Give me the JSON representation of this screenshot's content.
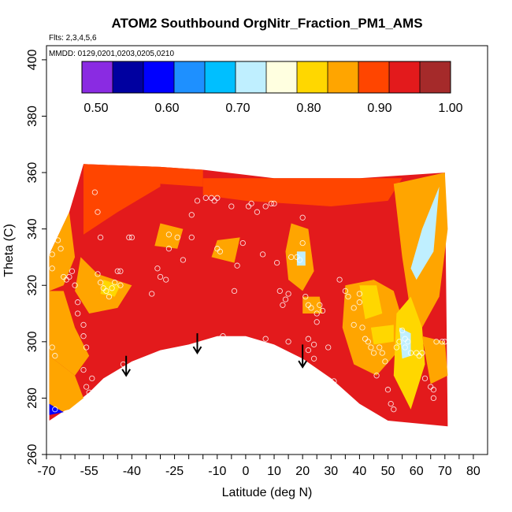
{
  "chart_data": {
    "type": "heatmap",
    "title": "ATOM2 Southbound OrgNitr_Fraction_PM1_AMS",
    "flights_note": "Flts: 2,3,4,5,6",
    "dates_note": "MMDD: 0129,0201,0203,0205,0210",
    "xlabel": "Latitude (deg N)",
    "ylabel": "Theta (C)",
    "xlim": [
      -70,
      85
    ],
    "ylim": [
      260,
      405
    ],
    "x_ticks": [
      -70,
      -65,
      -60,
      -55,
      -50,
      -45,
      -40,
      -35,
      -30,
      -25,
      -20,
      -15,
      -10,
      -5,
      0,
      5,
      10,
      15,
      20,
      25,
      30,
      35,
      40,
      45,
      50,
      55,
      60,
      65,
      70,
      75,
      80
    ],
    "x_tick_labels": [
      "-70",
      "-55",
      "-40",
      "-25",
      "-10",
      "0",
      "10",
      "20",
      "30",
      "40",
      "50",
      "60",
      "70",
      "80"
    ],
    "x_tick_label_values": [
      -70,
      -55,
      -40,
      -25,
      -10,
      0,
      10,
      20,
      30,
      40,
      50,
      60,
      70,
      80
    ],
    "y_ticks": [
      260,
      280,
      300,
      320,
      340,
      360,
      380,
      400
    ],
    "y_tick_labels": [
      "260",
      "280",
      "300",
      "320",
      "340",
      "360",
      "380",
      "400"
    ],
    "colorbar": {
      "range": [
        0.48,
        1.0
      ],
      "tick_values": [
        0.5,
        0.6,
        0.7,
        0.8,
        0.9,
        1.0
      ],
      "tick_labels": [
        "0.50",
        "0.60",
        "0.70",
        "0.80",
        "0.90",
        "1.00"
      ],
      "colors": [
        "#8a2be2",
        "#0000a0",
        "#0000ff",
        "#1e90ff",
        "#00bfff",
        "#bfefff",
        "#ffffe0",
        "#ffd700",
        "#ffa500",
        "#ff4500",
        "#e31a1c",
        "#a52a2a"
      ]
    },
    "fill_regions": [
      {
        "value": 0.95,
        "polygon": [
          [
            -69,
            272
          ],
          [
            -69,
            331
          ],
          [
            -62,
            346
          ],
          [
            -59,
            356
          ],
          [
            -57,
            363
          ],
          [
            -30,
            362
          ],
          [
            -15,
            361
          ],
          [
            10,
            358
          ],
          [
            40,
            358
          ],
          [
            70,
            360
          ],
          [
            71,
            270
          ],
          [
            50,
            272
          ],
          [
            40,
            278
          ],
          [
            30,
            287
          ],
          [
            20,
            294
          ],
          [
            10,
            299
          ],
          [
            0,
            302
          ],
          [
            -10,
            302
          ],
          [
            -20,
            299
          ],
          [
            -30,
            297
          ],
          [
            -40,
            293
          ],
          [
            -50,
            287
          ],
          [
            -55,
            282
          ],
          [
            -60,
            278
          ]
        ]
      },
      {
        "value": 0.9,
        "polygon": [
          [
            -57,
            363
          ],
          [
            -30,
            362
          ],
          [
            -30,
            355
          ],
          [
            -45,
            346
          ],
          [
            -57,
            338
          ]
        ]
      },
      {
        "value": 0.88,
        "polygon": [
          [
            -30,
            362
          ],
          [
            -15,
            361
          ],
          [
            -15,
            355
          ],
          [
            -30,
            356
          ]
        ]
      },
      {
        "value": 0.87,
        "polygon": [
          [
            -15,
            358
          ],
          [
            10,
            358
          ],
          [
            40,
            358
          ],
          [
            55,
            358
          ],
          [
            50,
            350
          ],
          [
            30,
            348
          ],
          [
            0,
            350
          ],
          [
            -15,
            352
          ]
        ]
      },
      {
        "value": 0.85,
        "polygon": [
          [
            -69,
            331
          ],
          [
            -62,
            346
          ],
          [
            -60,
            330
          ],
          [
            -64,
            320
          ],
          [
            -69,
            318
          ]
        ]
      },
      {
        "value": 0.86,
        "polygon": [
          [
            -58,
            330
          ],
          [
            -52,
            324
          ],
          [
            -40,
            320
          ],
          [
            -45,
            312
          ],
          [
            -55,
            310
          ],
          [
            -60,
            318
          ]
        ]
      },
      {
        "value": 0.8,
        "polygon": [
          [
            -50,
            322
          ],
          [
            -44,
            320
          ],
          [
            -46,
            316
          ],
          [
            -51,
            317
          ]
        ]
      },
      {
        "value": 0.85,
        "polygon": [
          [
            -69,
            318
          ],
          [
            -64,
            318
          ],
          [
            -60,
            305
          ],
          [
            -55,
            295
          ],
          [
            -60,
            288
          ],
          [
            -69,
            295
          ]
        ]
      },
      {
        "value": 0.84,
        "polygon": [
          [
            -69,
            295
          ],
          [
            -60,
            288
          ],
          [
            -57,
            280
          ],
          [
            -62,
            276
          ],
          [
            -69,
            274
          ]
        ]
      },
      {
        "value": 0.6,
        "polygon": [
          [
            -69,
            278
          ],
          [
            -64,
            275
          ],
          [
            -69,
            274
          ]
        ]
      },
      {
        "value": 0.86,
        "polygon": [
          [
            -30,
            342
          ],
          [
            -22,
            340
          ],
          [
            -24,
            333
          ],
          [
            -32,
            334
          ]
        ]
      },
      {
        "value": 0.86,
        "polygon": [
          [
            -10,
            336
          ],
          [
            -2,
            337
          ],
          [
            -4,
            328
          ],
          [
            -12,
            330
          ]
        ]
      },
      {
        "value": 0.85,
        "polygon": [
          [
            16,
            342
          ],
          [
            22,
            340
          ],
          [
            24,
            325
          ],
          [
            20,
            318
          ],
          [
            15,
            322
          ],
          [
            14,
            332
          ]
        ]
      },
      {
        "value": 0.72,
        "polygon": [
          [
            18,
            332
          ],
          [
            21,
            332
          ],
          [
            21,
            327
          ],
          [
            18,
            327
          ]
        ]
      },
      {
        "value": 0.86,
        "polygon": [
          [
            20,
            316
          ],
          [
            26,
            316
          ],
          [
            27,
            310
          ],
          [
            20,
            310
          ]
        ]
      },
      {
        "value": 0.86,
        "polygon": [
          [
            35,
            320
          ],
          [
            45,
            322
          ],
          [
            52,
            318
          ],
          [
            55,
            308
          ],
          [
            53,
            296
          ],
          [
            46,
            288
          ],
          [
            38,
            292
          ],
          [
            34,
            305
          ]
        ]
      },
      {
        "value": 0.8,
        "polygon": [
          [
            40,
            320
          ],
          [
            46,
            320
          ],
          [
            48,
            310
          ],
          [
            42,
            308
          ]
        ]
      },
      {
        "value": 0.82,
        "polygon": [
          [
            44,
            305
          ],
          [
            52,
            306
          ],
          [
            52,
            300
          ],
          [
            45,
            299
          ]
        ]
      },
      {
        "value": 0.85,
        "polygon": [
          [
            52,
            356
          ],
          [
            70,
            360
          ],
          [
            71,
            340
          ],
          [
            68,
            316
          ],
          [
            62,
            305
          ],
          [
            58,
            310
          ],
          [
            55,
            330
          ]
        ]
      },
      {
        "value": 0.72,
        "polygon": [
          [
            60,
            322
          ],
          [
            66,
            332
          ],
          [
            68,
            355
          ],
          [
            62,
            340
          ],
          [
            58,
            326
          ]
        ]
      },
      {
        "value": 0.8,
        "polygon": [
          [
            53,
            310
          ],
          [
            58,
            316
          ],
          [
            62,
            305
          ],
          [
            63,
            292
          ],
          [
            58,
            276
          ],
          [
            52,
            288
          ]
        ]
      },
      {
        "value": 0.73,
        "polygon": [
          [
            54,
            305
          ],
          [
            58,
            303
          ],
          [
            58,
            295
          ],
          [
            55,
            294
          ]
        ]
      },
      {
        "value": 0.84,
        "polygon": [
          [
            62,
            302
          ],
          [
            70,
            300
          ],
          [
            71,
            288
          ],
          [
            65,
            285
          ]
        ]
      }
    ],
    "points": [
      [
        -68,
        331
      ],
      [
        -68,
        326
      ],
      [
        -68,
        298
      ],
      [
        -67,
        295
      ],
      [
        -67,
        276
      ],
      [
        -66,
        336
      ],
      [
        -65,
        333
      ],
      [
        -64,
        323
      ],
      [
        -63,
        322
      ],
      [
        -62,
        323
      ],
      [
        -61,
        325
      ],
      [
        -60,
        320
      ],
      [
        -59,
        314
      ],
      [
        -59,
        310
      ],
      [
        -57,
        306
      ],
      [
        -57,
        302
      ],
      [
        -56,
        298
      ],
      [
        -57,
        290
      ],
      [
        -56,
        284
      ],
      [
        -55,
        282
      ],
      [
        -54,
        287
      ],
      [
        -53,
        353
      ],
      [
        -52,
        346
      ],
      [
        -51,
        337
      ],
      [
        -52,
        324
      ],
      [
        -51,
        321
      ],
      [
        -50,
        319
      ],
      [
        -49,
        318
      ],
      [
        -48,
        316
      ],
      [
        -47,
        319
      ],
      [
        -46,
        321
      ],
      [
        -45,
        325
      ],
      [
        -44,
        325
      ],
      [
        -44,
        320
      ],
      [
        -43,
        292
      ],
      [
        -41,
        337
      ],
      [
        -40,
        337
      ],
      [
        -37,
        293
      ],
      [
        -33,
        317
      ],
      [
        -31,
        326
      ],
      [
        -30,
        323
      ],
      [
        -28,
        322
      ],
      [
        -27,
        338
      ],
      [
        -27,
        333
      ],
      [
        -24,
        337
      ],
      [
        -22,
        329
      ],
      [
        -19,
        337
      ],
      [
        -19,
        345
      ],
      [
        -17,
        350
      ],
      [
        -14,
        351
      ],
      [
        -12,
        351
      ],
      [
        -11,
        350
      ],
      [
        -10,
        351
      ],
      [
        -10,
        333
      ],
      [
        -9,
        332
      ],
      [
        -9,
        301
      ],
      [
        -8,
        302
      ],
      [
        -5,
        348
      ],
      [
        -4,
        318
      ],
      [
        -3,
        327
      ],
      [
        -1,
        335
      ],
      [
        1,
        348
      ],
      [
        2,
        349
      ],
      [
        4,
        346
      ],
      [
        6,
        331
      ],
      [
        7,
        301
      ],
      [
        7,
        348
      ],
      [
        9,
        349
      ],
      [
        10,
        349
      ],
      [
        11,
        328
      ],
      [
        12,
        318
      ],
      [
        13,
        313
      ],
      [
        14,
        315
      ],
      [
        15,
        317
      ],
      [
        15,
        300
      ],
      [
        16,
        330
      ],
      [
        18,
        330
      ],
      [
        19,
        329
      ],
      [
        20,
        344
      ],
      [
        20,
        335
      ],
      [
        21,
        316
      ],
      [
        22,
        313
      ],
      [
        22,
        301
      ],
      [
        22,
        297
      ],
      [
        23,
        312
      ],
      [
        24,
        299
      ],
      [
        24,
        294
      ],
      [
        25,
        310
      ],
      [
        25,
        307
      ],
      [
        26,
        313
      ],
      [
        27,
        311
      ],
      [
        29,
        298
      ],
      [
        31,
        286
      ],
      [
        33,
        322
      ],
      [
        35,
        318
      ],
      [
        36,
        316
      ],
      [
        38,
        312
      ],
      [
        38,
        306
      ],
      [
        40,
        317
      ],
      [
        40,
        314
      ],
      [
        41,
        305
      ],
      [
        42,
        301
      ],
      [
        43,
        300
      ],
      [
        44,
        298
      ],
      [
        45,
        296
      ],
      [
        46,
        288
      ],
      [
        47,
        298
      ],
      [
        48,
        296
      ],
      [
        49,
        293
      ],
      [
        50,
        283
      ],
      [
        51,
        278
      ],
      [
        52,
        276
      ],
      [
        53,
        298
      ],
      [
        54,
        300
      ],
      [
        55,
        304
      ],
      [
        56,
        301
      ],
      [
        56,
        298
      ],
      [
        57,
        300
      ],
      [
        58,
        296
      ],
      [
        60,
        296
      ],
      [
        61,
        295
      ],
      [
        62,
        296
      ],
      [
        63,
        287
      ],
      [
        65,
        284
      ],
      [
        66,
        280
      ],
      [
        66,
        283
      ],
      [
        67,
        300
      ],
      [
        69,
        300
      ],
      [
        70,
        300
      ]
    ],
    "arrows": [
      {
        "x": -42,
        "y_from": 295,
        "y_to": 288
      },
      {
        "x": -17,
        "y_from": 303,
        "y_to": 296
      },
      {
        "x": 20,
        "y_from": 299,
        "y_to": 291
      }
    ]
  }
}
